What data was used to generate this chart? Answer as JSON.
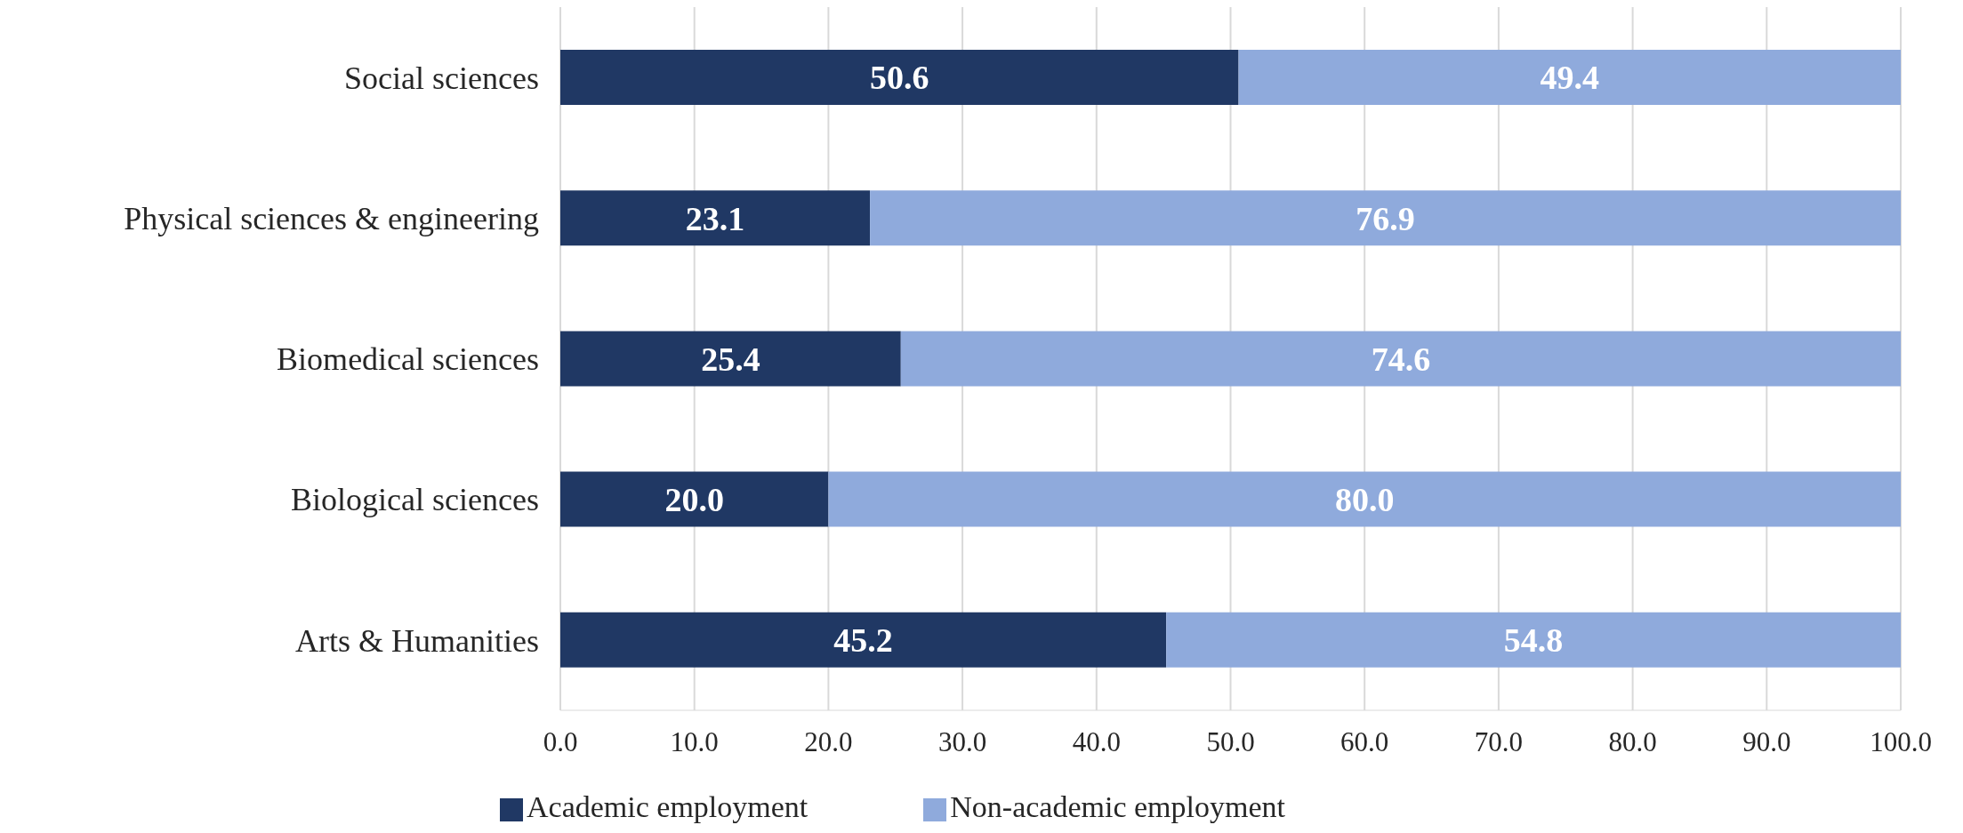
{
  "chart_data": {
    "type": "bar",
    "orientation": "horizontal",
    "stacked": true,
    "categories": [
      "Social sciences",
      "Physical sciences & engineering",
      "Biomedical sciences",
      "Biological sciences",
      "Arts & Humanities"
    ],
    "series": [
      {
        "name": "Academic employment",
        "color": "#203864",
        "values": [
          50.6,
          23.1,
          25.4,
          20.0,
          45.2
        ],
        "value_labels": [
          "50.6",
          "23.1",
          "25.4",
          "20.0",
          "45.2"
        ]
      },
      {
        "name": "Non-academic employment",
        "color": "#8faadc",
        "values": [
          49.4,
          76.9,
          74.6,
          80.0,
          54.8
        ],
        "value_labels": [
          "49.4",
          "76.9",
          "74.6",
          "80.0",
          "54.8"
        ]
      }
    ],
    "xlim": [
      0,
      100
    ],
    "xticks": [
      {
        "value": 0,
        "label": "0.0"
      },
      {
        "value": 10,
        "label": "10.0"
      },
      {
        "value": 20,
        "label": "20.0"
      },
      {
        "value": 30,
        "label": "30.0"
      },
      {
        "value": 40,
        "label": "40.0"
      },
      {
        "value": 50,
        "label": "50.0"
      },
      {
        "value": 60,
        "label": "60.0"
      },
      {
        "value": 70,
        "label": "70.0"
      },
      {
        "value": 80,
        "label": "80.0"
      },
      {
        "value": 90,
        "label": "90.0"
      },
      {
        "value": 100,
        "label": "100.0"
      }
    ],
    "grid": "x",
    "legend": "bottom"
  }
}
